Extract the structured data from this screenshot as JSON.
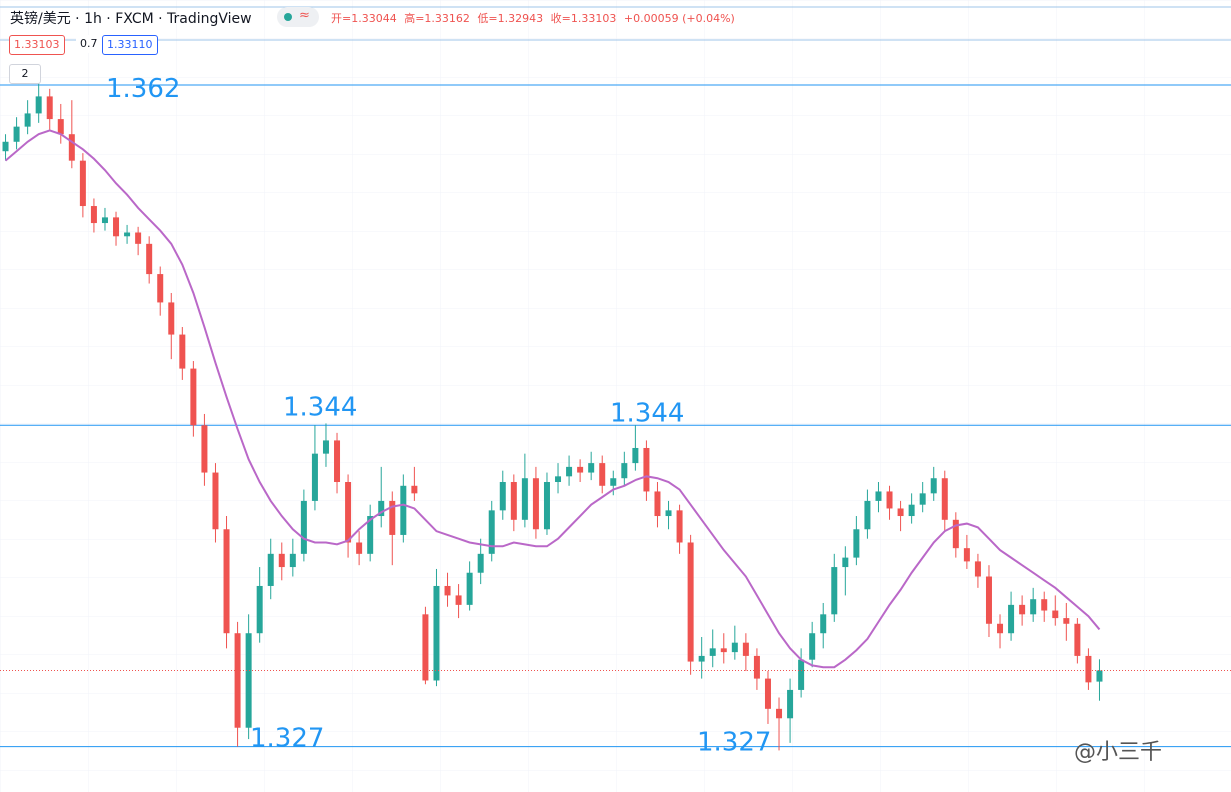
{
  "header": {
    "symbol": "英镑/美元 · 1h · FXCM · TradingView",
    "indicator_icon": "≈",
    "ohlc_text": [
      "开=1.33044",
      "高=1.33162",
      "低=1.32943",
      "收=1.33103",
      "+0.00059 (+0.04%)"
    ],
    "price_boxes": [
      "1.33103",
      "0.7",
      "1.33110"
    ],
    "collapse_count": "2"
  },
  "watermark": "@小三千",
  "chart_data": {
    "type": "candlestick",
    "up_color": "#26a69a",
    "down_color": "#ef5350",
    "ylim": [
      1.3246,
      1.3665
    ],
    "ohlc": [
      [
        1.3585,
        1.3594,
        1.358,
        1.359
      ],
      [
        1.359,
        1.3603,
        1.3586,
        1.3598
      ],
      [
        1.3598,
        1.3612,
        1.3594,
        1.3605
      ],
      [
        1.3605,
        1.3622,
        1.36,
        1.3614
      ],
      [
        1.3614,
        1.3618,
        1.3596,
        1.3602
      ],
      [
        1.3602,
        1.361,
        1.3589,
        1.3594
      ],
      [
        1.3594,
        1.3612,
        1.3576,
        1.358
      ],
      [
        1.358,
        1.3584,
        1.355,
        1.3556
      ],
      [
        1.3556,
        1.356,
        1.3542,
        1.3547
      ],
      [
        1.3547,
        1.3555,
        1.3543,
        1.355
      ],
      [
        1.355,
        1.3553,
        1.3535,
        1.354
      ],
      [
        1.354,
        1.3546,
        1.3536,
        1.3542
      ],
      [
        1.3542,
        1.3545,
        1.353,
        1.3536
      ],
      [
        1.3536,
        1.354,
        1.3515,
        1.352
      ],
      [
        1.352,
        1.3524,
        1.3498,
        1.3505
      ],
      [
        1.3505,
        1.351,
        1.3475,
        1.3488
      ],
      [
        1.3488,
        1.3492,
        1.3464,
        1.347
      ],
      [
        1.347,
        1.3474,
        1.3434,
        1.344
      ],
      [
        1.344,
        1.3446,
        1.3408,
        1.3415
      ],
      [
        1.3415,
        1.342,
        1.3378,
        1.3385
      ],
      [
        1.3385,
        1.3392,
        1.3322,
        1.333
      ],
      [
        1.333,
        1.3336,
        1.327,
        1.328
      ],
      [
        1.328,
        1.334,
        1.3274,
        1.333
      ],
      [
        1.333,
        1.3365,
        1.3325,
        1.3355
      ],
      [
        1.3355,
        1.338,
        1.3348,
        1.3372
      ],
      [
        1.3372,
        1.3378,
        1.3358,
        1.3365
      ],
      [
        1.3365,
        1.338,
        1.336,
        1.3372
      ],
      [
        1.3372,
        1.3406,
        1.3368,
        1.34
      ],
      [
        1.34,
        1.344,
        1.3395,
        1.3425
      ],
      [
        1.3425,
        1.3441,
        1.3418,
        1.3432
      ],
      [
        1.3432,
        1.3436,
        1.3404,
        1.341
      ],
      [
        1.341,
        1.3414,
        1.337,
        1.3378
      ],
      [
        1.3378,
        1.3384,
        1.3366,
        1.3372
      ],
      [
        1.3372,
        1.3398,
        1.3368,
        1.3392
      ],
      [
        1.3392,
        1.3418,
        1.3386,
        1.34
      ],
      [
        1.34,
        1.3405,
        1.3366,
        1.3382
      ],
      [
        1.3382,
        1.3414,
        1.3378,
        1.3408
      ],
      [
        1.3408,
        1.3418,
        1.34,
        1.3404
      ],
      [
        1.334,
        1.3344,
        1.3303,
        1.3305
      ],
      [
        1.3305,
        1.3364,
        1.3302,
        1.3355
      ],
      [
        1.3355,
        1.3362,
        1.3344,
        1.335
      ],
      [
        1.335,
        1.3356,
        1.3338,
        1.3345
      ],
      [
        1.3345,
        1.3368,
        1.3342,
        1.3362
      ],
      [
        1.3362,
        1.338,
        1.3356,
        1.3372
      ],
      [
        1.3372,
        1.34,
        1.3368,
        1.3395
      ],
      [
        1.3395,
        1.3416,
        1.339,
        1.341
      ],
      [
        1.341,
        1.3414,
        1.3384,
        1.339
      ],
      [
        1.339,
        1.3425,
        1.3386,
        1.3412
      ],
      [
        1.3412,
        1.3418,
        1.338,
        1.3385
      ],
      [
        1.3385,
        1.3415,
        1.3382,
        1.341
      ],
      [
        1.341,
        1.342,
        1.3404,
        1.3413
      ],
      [
        1.3413,
        1.3424,
        1.3408,
        1.3418
      ],
      [
        1.3418,
        1.3422,
        1.341,
        1.3415
      ],
      [
        1.3415,
        1.3426,
        1.3411,
        1.342
      ],
      [
        1.342,
        1.3424,
        1.3404,
        1.3408
      ],
      [
        1.3408,
        1.3416,
        1.3403,
        1.3412
      ],
      [
        1.3412,
        1.3426,
        1.3408,
        1.342
      ],
      [
        1.342,
        1.344,
        1.3416,
        1.3428
      ],
      [
        1.3428,
        1.3432,
        1.34,
        1.3405
      ],
      [
        1.3405,
        1.341,
        1.3386,
        1.3392
      ],
      [
        1.3392,
        1.34,
        1.3385,
        1.3395
      ],
      [
        1.3395,
        1.3398,
        1.3372,
        1.3378
      ],
      [
        1.3378,
        1.3382,
        1.3308,
        1.3315
      ],
      [
        1.3315,
        1.3328,
        1.3306,
        1.3318
      ],
      [
        1.3318,
        1.3332,
        1.3312,
        1.3322
      ],
      [
        1.3322,
        1.333,
        1.3314,
        1.332
      ],
      [
        1.332,
        1.3334,
        1.3316,
        1.3325
      ],
      [
        1.3325,
        1.333,
        1.331,
        1.3318
      ],
      [
        1.3318,
        1.3322,
        1.33,
        1.3306
      ],
      [
        1.3306,
        1.331,
        1.3282,
        1.329
      ],
      [
        1.329,
        1.3296,
        1.3268,
        1.3285
      ],
      [
        1.3285,
        1.3306,
        1.3272,
        1.33
      ],
      [
        1.33,
        1.3322,
        1.3296,
        1.3316
      ],
      [
        1.3316,
        1.3336,
        1.3312,
        1.333
      ],
      [
        1.333,
        1.3346,
        1.3322,
        1.334
      ],
      [
        1.334,
        1.3372,
        1.3336,
        1.3365
      ],
      [
        1.3365,
        1.3376,
        1.335,
        1.337
      ],
      [
        1.337,
        1.3392,
        1.3366,
        1.3385
      ],
      [
        1.3385,
        1.3406,
        1.338,
        1.34
      ],
      [
        1.34,
        1.341,
        1.3394,
        1.3405
      ],
      [
        1.3405,
        1.3408,
        1.339,
        1.3396
      ],
      [
        1.3396,
        1.34,
        1.3384,
        1.3392
      ],
      [
        1.3392,
        1.3404,
        1.3388,
        1.3398
      ],
      [
        1.3398,
        1.341,
        1.3394,
        1.3404
      ],
      [
        1.3404,
        1.3418,
        1.34,
        1.3412
      ],
      [
        1.3412,
        1.3416,
        1.3384,
        1.339
      ],
      [
        1.339,
        1.3394,
        1.337,
        1.3375
      ],
      [
        1.3375,
        1.3382,
        1.3364,
        1.3368
      ],
      [
        1.3368,
        1.3372,
        1.3354,
        1.336
      ],
      [
        1.336,
        1.3366,
        1.3328,
        1.3335
      ],
      [
        1.3335,
        1.334,
        1.3322,
        1.333
      ],
      [
        1.333,
        1.3352,
        1.3326,
        1.3345
      ],
      [
        1.3345,
        1.335,
        1.3334,
        1.334
      ],
      [
        1.334,
        1.3354,
        1.3336,
        1.3348
      ],
      [
        1.3348,
        1.3352,
        1.3336,
        1.3342
      ],
      [
        1.3342,
        1.335,
        1.3334,
        1.3338
      ],
      [
        1.3338,
        1.3346,
        1.3326,
        1.3335
      ],
      [
        1.3335,
        1.3338,
        1.3314,
        1.3318
      ],
      [
        1.3318,
        1.3322,
        1.33,
        1.3304
      ],
      [
        1.33044,
        1.33162,
        1.32943,
        1.33103
      ]
    ],
    "ma": {
      "color": "#ba68c8",
      "values": [
        1.358,
        1.3585,
        1.359,
        1.3594,
        1.3596,
        1.3594,
        1.359,
        1.3586,
        1.3581,
        1.3575,
        1.3568,
        1.3562,
        1.3555,
        1.3549,
        1.3543,
        1.3536,
        1.3525,
        1.351,
        1.3492,
        1.3473,
        1.3455,
        1.3438,
        1.3422,
        1.341,
        1.34,
        1.3392,
        1.3385,
        1.338,
        1.3378,
        1.3378,
        1.3377,
        1.3379,
        1.3385,
        1.339,
        1.3394,
        1.3397,
        1.3398,
        1.3396,
        1.339,
        1.3384,
        1.3382,
        1.338,
        1.3378,
        1.3377,
        1.3376,
        1.3376,
        1.3378,
        1.3377,
        1.3376,
        1.3376,
        1.338,
        1.3386,
        1.3392,
        1.3398,
        1.3402,
        1.3406,
        1.3408,
        1.3411,
        1.3413,
        1.3412,
        1.341,
        1.3406,
        1.3398,
        1.339,
        1.3382,
        1.3374,
        1.3367,
        1.336,
        1.335,
        1.334,
        1.333,
        1.3322,
        1.3316,
        1.3313,
        1.3312,
        1.3312,
        1.3316,
        1.3321,
        1.3327,
        1.3336,
        1.3345,
        1.3353,
        1.3362,
        1.337,
        1.3378,
        1.3384,
        1.3387,
        1.3388,
        1.3386,
        1.338,
        1.3374,
        1.337,
        1.3366,
        1.3362,
        1.3358,
        1.3354,
        1.3349,
        1.3344,
        1.3339,
        1.3332
      ]
    },
    "hlines": [
      1.362,
      1.344,
      1.327
    ],
    "hline_color": "#2196f3",
    "annotations": [
      {
        "value": 1.362,
        "label": "1.362"
      },
      {
        "value": 1.344,
        "label": "1.344"
      },
      {
        "value": 1.344,
        "label": "1.344"
      },
      {
        "value": 1.327,
        "label": "1.327"
      },
      {
        "value": 1.327,
        "label": "1.327"
      }
    ]
  }
}
